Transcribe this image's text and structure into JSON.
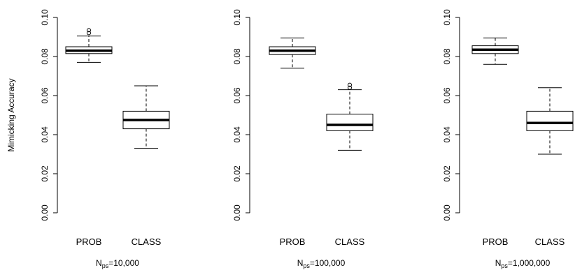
{
  "chart_data": {
    "type": "boxplot",
    "ylabel": "Mimicking Accuracy",
    "ylim": [
      0,
      0.1
    ],
    "y_ticks": [
      "0.00",
      "0.02",
      "0.04",
      "0.06",
      "0.08",
      "0.10"
    ],
    "categories": [
      "PROB",
      "CLASS"
    ],
    "panels": [
      {
        "xlabel_main": "N",
        "xlabel_sub": "ps",
        "xlabel_value": "=10,000",
        "boxes": [
          {
            "category": "PROB",
            "min": 0.077,
            "q1": 0.0815,
            "median": 0.083,
            "q3": 0.085,
            "max": 0.0905,
            "outliers": [
              0.092,
              0.0935
            ]
          },
          {
            "category": "CLASS",
            "min": 0.033,
            "q1": 0.043,
            "median": 0.0475,
            "q3": 0.052,
            "max": 0.065,
            "outliers": []
          }
        ]
      },
      {
        "xlabel_main": "N",
        "xlabel_sub": "ps",
        "xlabel_value": "=100,000",
        "boxes": [
          {
            "category": "PROB",
            "min": 0.074,
            "q1": 0.081,
            "median": 0.083,
            "q3": 0.085,
            "max": 0.0895,
            "outliers": []
          },
          {
            "category": "CLASS",
            "min": 0.032,
            "q1": 0.042,
            "median": 0.045,
            "q3": 0.0505,
            "max": 0.063,
            "outliers": [
              0.064,
              0.0655
            ]
          }
        ]
      },
      {
        "xlabel_main": "N",
        "xlabel_sub": "ps",
        "xlabel_value": "=1,000,000",
        "boxes": [
          {
            "category": "PROB",
            "min": 0.076,
            "q1": 0.0815,
            "median": 0.0835,
            "q3": 0.0855,
            "max": 0.0895,
            "outliers": []
          },
          {
            "category": "CLASS",
            "min": 0.03,
            "q1": 0.042,
            "median": 0.046,
            "q3": 0.052,
            "max": 0.064,
            "outliers": []
          }
        ]
      }
    ]
  }
}
